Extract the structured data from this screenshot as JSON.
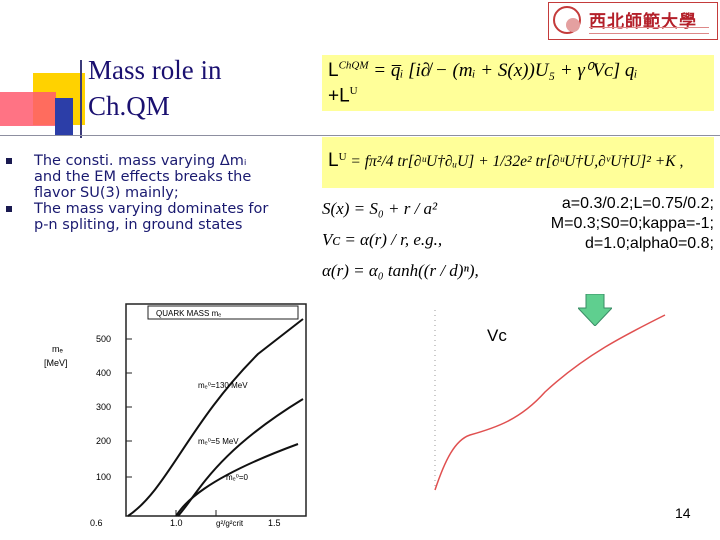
{
  "slide": {
    "title_line1": "Mass role in",
    "title_line2": "Ch.QM",
    "logo_text": "西北師範大學",
    "bullets": [
      "The consti. mass varying Δmᵢ and the EM effects breaks the flavor SU(3) mainly;",
      " The mass varying dominates for p-n spliting, in ground states"
    ],
    "params": [
      "a=0.3/0.2;L=0.75/0.2;",
      "M=0.3;S0=0;kappa=-1;",
      "d=1.0;alpha0=0.8;"
    ],
    "vc_label": "Vc",
    "page_number": "14"
  },
  "equations": {
    "lagrangian_label": "L",
    "lagrangian_sup": "ChQM",
    "lagrangian_rhs": "= q̅ᵢ [i∂̸ − (mᵢ + S(x))U₅ + γ⁰Vᴄ] qᵢ",
    "lagrangian_tail": "+L",
    "lagrangian_tail_sup": "U",
    "lu_label": "L",
    "lu_sup": "U",
    "lu_rhs": "= fπ²/4 tr[∂ᵘU†∂ᵤU] + 1/32e² tr[∂ᵘU†U,∂ᵛU†U]² +K ,",
    "s_def": "S(x) = S₀ + r / a²",
    "vc_def": "Vᴄ = α(r) / r, e.g.,",
    "alpha_def": "α(r) = α₀ tanh((r / d)ⁿ),"
  },
  "quark_mass_plot": {
    "title": "QUARK MASS  mₑ",
    "y_label_1": "mₑ",
    "y_label_2": "[MeV]",
    "y_ticks": [
      "500",
      "400",
      "300",
      "200",
      "100"
    ],
    "x_ticks": [
      "0.6",
      "1.0",
      "1.5"
    ],
    "x_label": "g²/g²crit",
    "curve_labels": [
      "mₑ⁰=130 MeV",
      "mₑ⁰=5 MeV",
      "mₑ⁰=0"
    ]
  },
  "colors": {
    "title": "#1a1070",
    "equation_box": "#ffff99",
    "curve": "#e05050",
    "arrow": "#5fcf8f"
  }
}
